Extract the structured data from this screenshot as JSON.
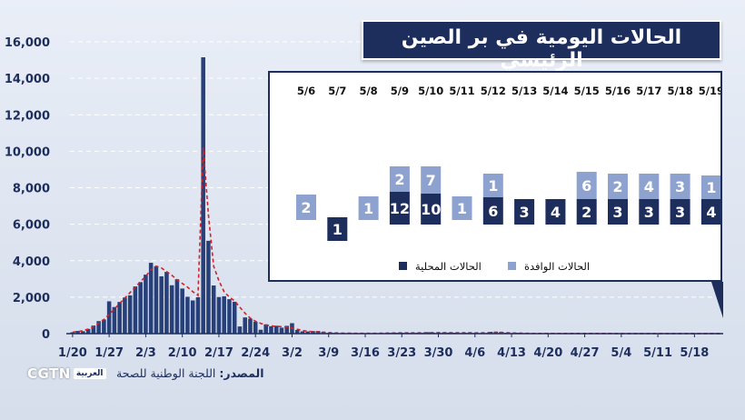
{
  "title": "الحالات اليومية في بر الصين الرئيسي",
  "source": {
    "label": "المصدر:",
    "text": "اللجنة الوطنية للصحة"
  },
  "logo": {
    "en": "CGTN",
    "ar": "العربية"
  },
  "colors": {
    "bar": "#27407a",
    "trend": "#d0222a",
    "local": "#1d2d5c",
    "imported": "#8da2cf",
    "axis": "#1d2d5c"
  },
  "chart_data": [
    {
      "type": "bar",
      "ylim": [
        0,
        16000
      ],
      "y_ticks": [
        "0",
        "2,000",
        "4,000",
        "6,000",
        "8,000",
        "10,000",
        "12,000",
        "14,000",
        "16,000"
      ],
      "x_ticks": [
        "1/20",
        "1/27",
        "2/3",
        "2/10",
        "2/17",
        "2/24",
        "3/2",
        "3/9",
        "3/16",
        "3/23",
        "3/30",
        "4/6",
        "4/13",
        "4/20",
        "4/27",
        "5/4",
        "5/11",
        "5/18"
      ],
      "grid": true,
      "series": [
        {
          "values": [
            77,
            149,
            131,
            259,
            444,
            688,
            769,
            1771,
            1459,
            1737,
            1981,
            2099,
            2589,
            2825,
            3235,
            3884,
            3694,
            3143,
            3385,
            2652,
            2984,
            2473,
            2022,
            1820,
            1998,
            15152,
            5090,
            2641,
            2008,
            2048,
            1888,
            1749,
            394,
            889,
            823,
            648,
            214,
            508,
            406,
            433,
            327,
            427,
            573,
            202,
            125,
            119,
            139,
            143,
            99,
            44,
            40,
            19,
            24,
            15,
            20,
            11,
            13,
            16,
            13,
            25,
            25,
            39,
            44,
            44,
            54,
            41,
            46,
            39,
            78,
            47,
            67,
            55,
            54,
            45,
            31,
            48,
            63,
            39,
            30,
            32,
            99,
            108,
            89,
            46,
            26,
            46,
            27,
            7,
            6,
            20,
            13,
            12,
            17,
            12,
            11,
            11,
            11,
            12,
            6,
            6,
            22,
            21,
            7,
            4,
            3,
            6,
            3,
            2,
            6,
            4,
            1,
            2,
            17,
            2,
            1,
            1,
            7,
            8,
            4,
            5,
            1,
            3,
            6,
            5,
            4
          ]
        }
      ],
      "trend_line": {
        "style": "dashed",
        "values": [
          80,
          110,
          160,
          250,
          380,
          560,
          780,
          1050,
          1350,
          1650,
          1950,
          2250,
          2550,
          2850,
          3150,
          3500,
          3700,
          3600,
          3400,
          3200,
          2950,
          2750,
          2550,
          2300,
          2100,
          10200,
          6500,
          3700,
          2900,
          2300,
          2000,
          1800,
          1450,
          1120,
          850,
          680,
          560,
          480,
          420,
          400,
          380,
          350,
          300,
          240,
          170,
          130,
          110,
          100,
          80,
          60,
          45,
          35,
          25,
          20,
          18,
          15,
          15,
          15,
          18,
          22,
          28,
          34,
          38,
          42,
          44,
          44,
          44,
          46,
          50,
          52,
          54,
          53,
          51,
          48,
          46,
          45,
          45,
          44,
          42,
          45,
          60,
          70,
          70,
          55,
          40,
          30,
          22,
          15,
          12,
          12,
          12,
          12,
          12,
          12,
          11,
          11,
          11,
          10,
          9,
          9,
          10,
          10,
          9,
          7,
          5,
          4,
          4,
          4,
          4,
          3,
          3,
          3,
          4,
          4,
          3,
          3,
          4,
          4,
          4,
          4,
          3,
          3,
          4,
          4,
          4
        ]
      }
    },
    {
      "type": "bar",
      "categories": [
        "5/6",
        "5/7",
        "5/8",
        "5/9",
        "5/10",
        "5/11",
        "5/12",
        "5/13",
        "5/14",
        "5/15",
        "5/16",
        "5/17",
        "5/18",
        "5/19"
      ],
      "series": [
        {
          "name": "الحالات المحلية",
          "values": [
            0,
            1,
            0,
            12,
            10,
            0,
            6,
            3,
            4,
            2,
            3,
            3,
            3,
            4
          ]
        },
        {
          "name": "الحالات الوافدة",
          "values": [
            2,
            0,
            1,
            2,
            7,
            1,
            1,
            0,
            0,
            6,
            2,
            4,
            3,
            1
          ]
        }
      ],
      "legend_position": "bottom"
    }
  ]
}
